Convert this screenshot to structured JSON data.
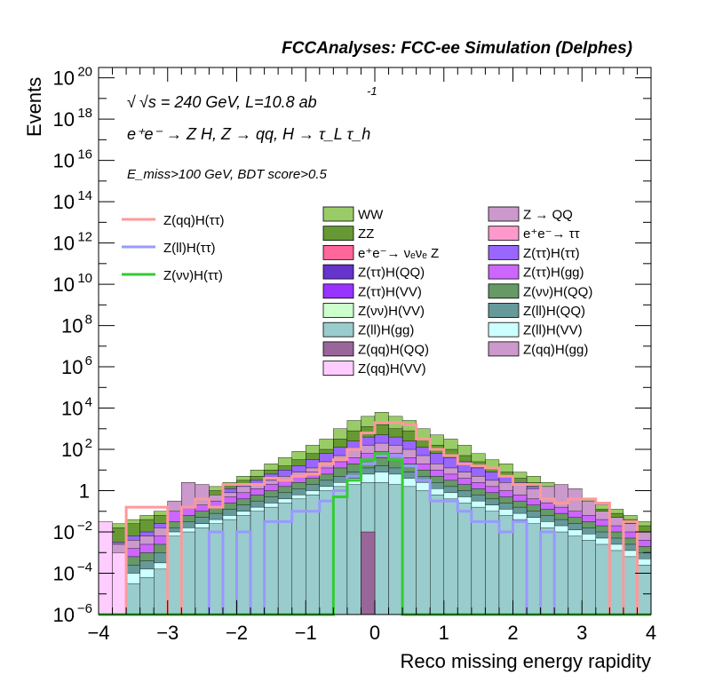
{
  "header": {
    "title": "FCCAnalyses: FCC-ee Simulation (Delphes)"
  },
  "annotations": {
    "energy_prefix": "√s = 240 GeV, L=10.8 ab",
    "energy_exp": "-1",
    "process": "e⁺e⁻ → Z H, Z → qq, H → τ_L τ_h",
    "selection": "E_miss>100 GeV, BDT score>0.5"
  },
  "colors": {
    "WW": "#99cc66",
    "ZZ": "#669933",
    "nunuZ": "#ff6699",
    "ZttHQQ": "#6633cc",
    "ZttHVV": "#9933ff",
    "ZnnHVV": "#ccffcc",
    "ZllHgg": "#99cccc",
    "ZqqHQQ": "#996699",
    "ZqqHVV": "#ffccff",
    "ZQQ": "#cc99cc",
    "tautau": "#ff99cc",
    "ZttHtt": "#9966ff",
    "ZttHgg": "#cc66ff",
    "ZnnHQQ": "#669966",
    "ZllHQQ": "#669999",
    "ZllHVV": "#ccffff",
    "ZqqHgg": "#cc99cc",
    "sig_qq": "#ff9999",
    "sig_ll": "#9999ff",
    "sig_nn": "#33cc33"
  },
  "chart_data": {
    "type": "area",
    "title": "",
    "xlabel": "Reco missing energy rapidity",
    "ylabel": "Events",
    "xlim": [
      -4,
      4
    ],
    "ylim_exp": [
      -6,
      20.5
    ],
    "log_y": true,
    "grid": false,
    "bin_edges": [
      -4.0,
      -3.8,
      -3.6,
      -3.4,
      -3.2,
      -3.0,
      -2.8,
      -2.6,
      -2.4,
      -2.2,
      -2.0,
      -1.8,
      -1.6,
      -1.4,
      -1.2,
      -1.0,
      -0.8,
      -0.6,
      -0.4,
      -0.2,
      0.0,
      0.2,
      0.4,
      0.6,
      0.8,
      1.0,
      1.2,
      1.4,
      1.6,
      1.8,
      2.0,
      2.2,
      2.4,
      2.6,
      2.8,
      3.0,
      3.2,
      3.4,
      3.6,
      3.8,
      4.0
    ],
    "x_ticks": [
      {
        "v": -4,
        "label": "−4"
      },
      {
        "v": -3,
        "label": "−3"
      },
      {
        "v": -2,
        "label": "−2"
      },
      {
        "v": -1,
        "label": "−1"
      },
      {
        "v": 0,
        "label": "0"
      },
      {
        "v": 1,
        "label": "1"
      },
      {
        "v": 2,
        "label": "2"
      },
      {
        "v": 3,
        "label": "3"
      },
      {
        "v": 4,
        "label": "4"
      }
    ],
    "y_ticks": [
      {
        "e": -6,
        "base": "10",
        "exp": "−6"
      },
      {
        "e": -4,
        "base": "10",
        "exp": "−4"
      },
      {
        "e": -2,
        "base": "10",
        "exp": "−2"
      },
      {
        "e": 0,
        "base": "1",
        "exp": ""
      },
      {
        "e": 2,
        "base": "10",
        "exp": "2"
      },
      {
        "e": 4,
        "base": "10",
        "exp": "4"
      },
      {
        "e": 6,
        "base": "10",
        "exp": "6"
      },
      {
        "e": 8,
        "base": "10",
        "exp": "8"
      },
      {
        "e": 10,
        "base": "10",
        "exp": "10"
      },
      {
        "e": 12,
        "base": "10",
        "exp": "12"
      },
      {
        "e": 14,
        "base": "10",
        "exp": "14"
      },
      {
        "e": 16,
        "base": "10",
        "exp": "16"
      },
      {
        "e": 18,
        "base": "10",
        "exp": "18"
      },
      {
        "e": 20,
        "base": "10",
        "exp": "20"
      }
    ],
    "stack_layers": [
      {
        "key": "WW",
        "log_top": [
          -1.8,
          -1.6,
          -1.4,
          -1.2,
          -1.0,
          -0.6,
          -0.3,
          -0.1,
          0.2,
          0.4,
          0.7,
          1.0,
          1.3,
          1.6,
          1.9,
          2.2,
          2.5,
          3.0,
          3.4,
          3.6,
          3.8,
          3.6,
          3.4,
          3.0,
          2.7,
          2.5,
          2.2,
          1.8,
          1.5,
          1.3,
          0.9,
          0.7,
          0.4,
          0.0,
          -0.2,
          -0.4,
          -0.7,
          -0.9,
          -1.2,
          -1.5
        ]
      },
      {
        "key": "ZZ",
        "log_top": [
          -2.0,
          -1.8,
          -1.6,
          -1.4,
          -1.2,
          -0.8,
          -0.5,
          -0.3,
          0.0,
          0.2,
          0.5,
          0.7,
          1.0,
          1.2,
          1.5,
          1.8,
          2.0,
          2.5,
          2.9,
          3.1,
          3.2,
          3.0,
          2.9,
          2.5,
          2.2,
          2.0,
          1.7,
          1.4,
          1.1,
          0.9,
          0.6,
          0.4,
          0.1,
          -0.3,
          -0.5,
          -0.6,
          -0.9,
          -1.1,
          -1.4,
          -1.7
        ]
      },
      {
        "key": "ZttHtt",
        "log_top": [
          -3.0,
          -2.5,
          -2.2,
          -2.0,
          -1.6,
          -0.9,
          -0.6,
          -0.5,
          -0.3,
          0.1,
          0.3,
          0.5,
          0.8,
          1.0,
          1.2,
          1.5,
          1.8,
          2.1,
          2.4,
          2.6,
          2.7,
          2.6,
          2.4,
          2.1,
          1.8,
          1.6,
          1.4,
          1.1,
          0.9,
          0.7,
          0.4,
          0.2,
          0.0,
          -0.3,
          -0.5,
          -0.7,
          -1.0,
          -1.3,
          -1.6,
          -2.0
        ]
      },
      {
        "key": "ZQQ",
        "log_top": [
          -3.0,
          -2.6,
          -2.4,
          -2.2,
          -1.8,
          -0.5,
          0.4,
          0.3,
          -0.2,
          -0.1,
          0.2,
          0.3,
          0.5,
          0.7,
          0.9,
          1.1,
          1.4,
          1.7,
          2.0,
          2.2,
          2.3,
          2.2,
          2.0,
          1.7,
          1.3,
          1.1,
          0.9,
          0.7,
          0.5,
          0.4,
          0.3,
          0.1,
          0.2,
          0.3,
          0.1,
          -0.5,
          -1.0,
          -1.3,
          -1.6,
          -2.0
        ]
      },
      {
        "key": "ZttHgg",
        "log_top": [
          -3.5,
          -3.0,
          -2.8,
          -2.6,
          -2.2,
          -1.0,
          -0.8,
          -0.7,
          -0.5,
          -0.3,
          -0.1,
          0.1,
          0.3,
          0.5,
          0.7,
          0.9,
          1.1,
          1.4,
          1.6,
          1.8,
          1.9,
          1.8,
          1.6,
          1.3,
          1.0,
          0.8,
          0.6,
          0.4,
          0.2,
          0.0,
          -0.2,
          -0.4,
          -0.6,
          -0.8,
          -1.0,
          -1.2,
          -1.4,
          -1.7,
          -2.0,
          -2.4
        ]
      },
      {
        "key": "ZnnHQQ",
        "log_top": [
          -4.0,
          -3.5,
          -3.2,
          -3.0,
          -2.6,
          -1.5,
          -1.2,
          -1.0,
          -0.8,
          -0.6,
          -0.4,
          -0.2,
          0.0,
          0.2,
          0.4,
          0.6,
          0.8,
          1.1,
          1.3,
          1.5,
          1.6,
          1.5,
          1.3,
          1.0,
          0.7,
          0.5,
          0.3,
          0.1,
          -0.1,
          -0.3,
          -0.5,
          -0.7,
          -0.9,
          -1.1,
          -1.3,
          -1.5,
          -1.7,
          -2.0,
          -2.3,
          -2.7
        ]
      },
      {
        "key": "ZllHQQ",
        "log_top": [
          -4.5,
          -4.0,
          -3.6,
          -3.4,
          -3.0,
          -1.8,
          -1.5,
          -1.3,
          -1.1,
          -0.9,
          -0.7,
          -0.5,
          -0.3,
          -0.1,
          0.1,
          0.3,
          0.5,
          0.7,
          0.9,
          1.1,
          1.2,
          1.1,
          0.9,
          0.7,
          0.4,
          0.2,
          0.0,
          -0.2,
          -0.4,
          -0.6,
          -0.8,
          -1.0,
          -1.2,
          -1.4,
          -1.6,
          -1.8,
          -2.0,
          -2.3,
          -2.6,
          -3.0
        ]
      },
      {
        "key": "ZllHVV",
        "log_top": [
          -5.0,
          -4.5,
          -4.0,
          -3.8,
          -3.5,
          -2.0,
          -1.8,
          -1.6,
          -1.4,
          -1.2,
          -1.0,
          -0.8,
          -0.6,
          -0.4,
          -0.2,
          0.0,
          0.2,
          0.4,
          0.6,
          0.8,
          0.9,
          0.8,
          0.6,
          0.4,
          0.1,
          -0.1,
          -0.3,
          -0.5,
          -0.7,
          -0.9,
          -1.1,
          -1.3,
          -1.5,
          -1.7,
          -1.9,
          -2.1,
          -2.3,
          -2.6,
          -2.9,
          -3.3
        ]
      },
      {
        "key": "ZllHgg",
        "log_top": [
          -5.5,
          -5.0,
          -4.5,
          -4.2,
          -3.8,
          -2.2,
          -2.0,
          -1.8,
          -1.6,
          -1.4,
          -1.2,
          -1.0,
          -0.8,
          -0.6,
          -0.4,
          -0.2,
          0.0,
          0.2,
          0.3,
          0.4,
          0.4,
          0.3,
          0.2,
          0.0,
          -0.2,
          -0.4,
          -0.6,
          -0.8,
          -1.0,
          -1.2,
          -1.4,
          -1.6,
          -1.8,
          -2.0,
          -2.2,
          -2.4,
          -2.6,
          -2.9,
          -3.2,
          -3.6
        ]
      },
      {
        "key": "ZqqHVV",
        "log_top": [
          -1.5,
          -3.0,
          -6.0,
          -6.0,
          -6.0,
          -6.0,
          -6.0,
          -6.0,
          -6.0,
          -6.0,
          -6.0,
          -6.0,
          -6.0,
          -6.0,
          -6.0,
          -6.0,
          -6.0,
          -6.0,
          -6.0,
          -6.0,
          -6.0,
          -6.0,
          -6.0,
          -6.0,
          -6.0,
          -6.0,
          -6.0,
          -6.0,
          -6.0,
          -6.0,
          -6.0,
          -6.0,
          -6.0,
          -6.0,
          -6.0,
          -6.0,
          -6.0,
          -6.0,
          -6.0,
          -6.0
        ]
      },
      {
        "key": "ZqqHQQ",
        "log_top": [
          -6.0,
          -6.0,
          -6.0,
          -6.0,
          -6.0,
          -6.0,
          -6.0,
          -6.0,
          -6.0,
          -6.0,
          -6.0,
          -6.0,
          -6.0,
          -6.0,
          -6.0,
          -6.0,
          -6.0,
          -6.0,
          -6.0,
          -2.0,
          -6.0,
          -6.0,
          -6.0,
          -6.0,
          -6.0,
          -6.0,
          -6.0,
          -6.0,
          -6.0,
          -6.0,
          -6.0,
          -6.0,
          -6.0,
          -6.0,
          -6.0,
          -6.0,
          -6.0,
          -6.0,
          -6.0,
          -6.0
        ]
      }
    ],
    "signal_lines": [
      {
        "name": "Z(qq)H(ττ)",
        "key": "sig_qq",
        "log_y": [
          -6.0,
          -6.0,
          -0.8,
          -0.8,
          -0.8,
          -6.0,
          -0.8,
          -0.4,
          -0.8,
          0.3,
          0.3,
          0.3,
          0.6,
          0.5,
          0.7,
          0.8,
          1.3,
          1.5,
          2.0,
          2.8,
          3.3,
          3.3,
          3.2,
          2.5,
          2.0,
          1.7,
          1.3,
          1.2,
          1.1,
          0.7,
          0.3,
          0.3,
          -0.4,
          -0.6,
          -0.4,
          -0.4,
          -0.6,
          -6.0,
          -1.5,
          -6.0
        ]
      },
      {
        "name": "Z(ll)H(ττ)",
        "key": "sig_ll",
        "log_y": [
          -6.0,
          -6.0,
          -6.0,
          -6.0,
          -6.0,
          -6.0,
          -6.0,
          -6.0,
          -2.0,
          -6.0,
          -2.0,
          -6.0,
          -1.5,
          -1.5,
          -1.0,
          -1.0,
          -0.5,
          0.0,
          0.7,
          1.3,
          1.7,
          1.7,
          1.2,
          0.5,
          -0.5,
          -0.5,
          -1.0,
          -1.5,
          -1.5,
          -2.0,
          -1.5,
          -6.0,
          -2.0,
          -6.0,
          -6.0,
          -6.0,
          -6.0,
          -6.0,
          -6.0,
          -6.0
        ]
      },
      {
        "name": "Z(νν)H(ττ)",
        "key": "sig_nn",
        "log_y": [
          -6.0,
          -6.0,
          -6.0,
          -6.0,
          -6.0,
          -6.0,
          -6.0,
          -6.0,
          -6.0,
          -6.0,
          -6.0,
          -6.0,
          -6.0,
          -6.0,
          -6.0,
          -6.0,
          -6.0,
          -0.3,
          0.5,
          1.5,
          1.8,
          1.5,
          -6.0,
          -6.0,
          -6.0,
          -6.0,
          -6.0,
          -6.0,
          -6.0,
          -6.0,
          -6.0,
          -6.0,
          -6.0,
          -6.0,
          -6.0,
          -6.0,
          -6.0,
          -6.0,
          -6.0,
          -6.0
        ]
      }
    ],
    "legend_lines": [
      {
        "label": "Z(qq)H(ττ)",
        "key": "sig_qq"
      },
      {
        "label": "Z(ll)H(ττ)",
        "key": "sig_ll"
      },
      {
        "label": "Z(νν)H(ττ)",
        "key": "sig_nn"
      }
    ],
    "legend_col1": [
      {
        "label": "WW",
        "key": "WW"
      },
      {
        "label": "ZZ",
        "key": "ZZ"
      },
      {
        "label": "e⁺e⁻→ νₑνₑ Z",
        "key": "nunuZ"
      },
      {
        "label": "Z(ττ)H(QQ)",
        "key": "ZttHQQ"
      },
      {
        "label": "Z(ττ)H(VV)",
        "key": "ZttHVV"
      },
      {
        "label": "Z(νν)H(VV)",
        "key": "ZnnHVV"
      },
      {
        "label": "Z(ll)H(gg)",
        "key": "ZllHgg"
      },
      {
        "label": "Z(qq)H(QQ)",
        "key": "ZqqHQQ"
      },
      {
        "label": "Z(qq)H(VV)",
        "key": "ZqqHVV"
      }
    ],
    "legend_col2": [
      {
        "label": "Z → QQ",
        "key": "ZQQ"
      },
      {
        "label": "e⁺e⁻→ ττ",
        "key": "tautau"
      },
      {
        "label": "Z(ττ)H(ττ)",
        "key": "ZttHtt"
      },
      {
        "label": "Z(ττ)H(gg)",
        "key": "ZttHgg"
      },
      {
        "label": "Z(νν)H(QQ)",
        "key": "ZnnHQQ"
      },
      {
        "label": "Z(ll)H(QQ)",
        "key": "ZllHQQ"
      },
      {
        "label": "Z(ll)H(VV)",
        "key": "ZllHVV"
      },
      {
        "label": "Z(qq)H(gg)",
        "key": "ZqqHgg"
      }
    ]
  }
}
